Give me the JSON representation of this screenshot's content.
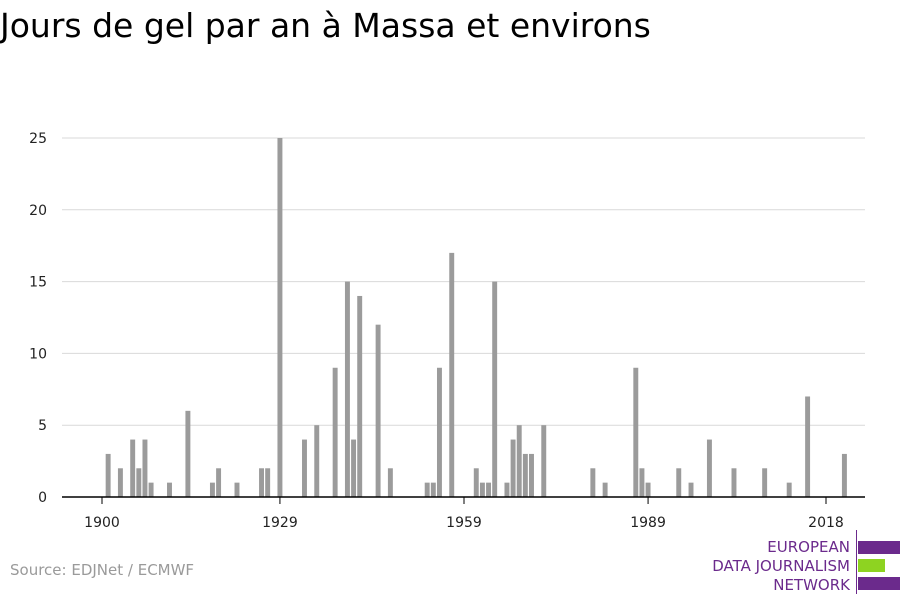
{
  "title": "Jours de gel par an à Massa et environs",
  "source": "Source: EDJNet / ECMWF",
  "logo": {
    "lines": [
      "EUROPEAN",
      "DATA JOURNALISM",
      "NETWORK"
    ],
    "text_color": "#6b2a8c",
    "bar_colors": [
      "#6b2a8c",
      "#8ed321",
      "#6b2a8c"
    ]
  },
  "colors": {
    "bar": "#9b9b9b",
    "grid": "#d9d9d9",
    "axis": "#000000"
  },
  "chart_data": {
    "type": "bar",
    "title": "Jours de gel par an à Massa et environs",
    "xlabel": "",
    "ylabel": "",
    "xlim": [
      1900,
      2018
    ],
    "ylim": [
      0,
      25
    ],
    "xticks": [
      1900,
      1929,
      1959,
      1989,
      2018
    ],
    "yticks": [
      0,
      5,
      10,
      15,
      20,
      25
    ],
    "grid": true,
    "legend": "none",
    "x": [
      1901,
      1903,
      1905,
      1906,
      1907,
      1908,
      1911,
      1914,
      1918,
      1919,
      1922,
      1926,
      1927,
      1929,
      1933,
      1935,
      1938,
      1940,
      1941,
      1942,
      1945,
      1947,
      1953,
      1954,
      1955,
      1957,
      1961,
      1962,
      1963,
      1964,
      1966,
      1967,
      1968,
      1969,
      1970,
      1972,
      1980,
      1982,
      1987,
      1988,
      1989,
      1994,
      1996,
      1999,
      2003,
      2008,
      2012,
      2015,
      2021
    ],
    "values": [
      3,
      2,
      4,
      2,
      4,
      1,
      1,
      6,
      1,
      2,
      1,
      2,
      2,
      25,
      4,
      5,
      9,
      15,
      4,
      14,
      12,
      2,
      1,
      1,
      9,
      17,
      2,
      1,
      1,
      15,
      1,
      4,
      5,
      3,
      3,
      5,
      2,
      1,
      9,
      2,
      1,
      2,
      1,
      4,
      2,
      2,
      1,
      7,
      3
    ]
  }
}
